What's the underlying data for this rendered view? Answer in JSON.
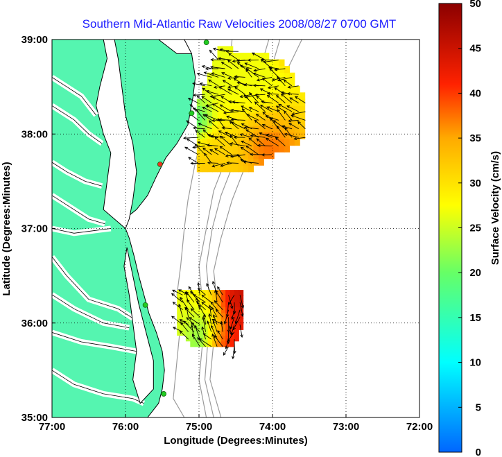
{
  "chart_data": {
    "type": "heatmap",
    "title": "Southern Mid-Atlantic Raw Velocities 2008/08/27 0700 GMT",
    "xlabel": "Longitude (Degrees:Minutes)",
    "ylabel": "Latitude (Degrees:Minutes)",
    "colorbar_label": "Surface Velocity (cm/s)",
    "xlim": [
      -77,
      -72
    ],
    "ylim": [
      35,
      39
    ],
    "x_ticks": [
      {
        "value": -77,
        "label": "77:00"
      },
      {
        "value": -76,
        "label": "76:00"
      },
      {
        "value": -75,
        "label": "75:00"
      },
      {
        "value": -74,
        "label": "74:00"
      },
      {
        "value": -73,
        "label": "73:00"
      },
      {
        "value": -72,
        "label": "72:00"
      }
    ],
    "y_ticks": [
      {
        "value": 35,
        "label": "35:00"
      },
      {
        "value": 36,
        "label": "36:00"
      },
      {
        "value": 37,
        "label": "37:00"
      },
      {
        "value": 38,
        "label": "38:00"
      },
      {
        "value": 39,
        "label": "39:00"
      }
    ],
    "colorbar": {
      "min": 0,
      "max": 50,
      "ticks": [
        {
          "value": 0,
          "label": "0"
        },
        {
          "value": 5,
          "label": "5"
        },
        {
          "value": 10,
          "label": "10"
        },
        {
          "value": 15,
          "label": "15"
        },
        {
          "value": 20,
          "label": "20"
        },
        {
          "value": 25,
          "label": "25"
        },
        {
          "value": 30,
          "label": "30"
        },
        {
          "value": 35,
          "label": "35"
        },
        {
          "value": 40,
          "label": "40"
        },
        {
          "value": 45,
          "label": "45"
        },
        {
          "value": 50,
          "label": "50"
        }
      ]
    },
    "grid": true,
    "colors": {
      "land": "#55f5b0",
      "coast": "#000000",
      "bathymetry": "#9a9a9a",
      "title": "#1a1aff",
      "station": "#22cc22",
      "station_alt": "#ee3322"
    },
    "stations": [
      {
        "lon": -74.9,
        "lat": 38.97,
        "color": "station"
      },
      {
        "lon": -75.1,
        "lat": 38.22,
        "color": "station"
      },
      {
        "lon": -75.53,
        "lat": 37.68,
        "color": "station_alt"
      },
      {
        "lon": -75.73,
        "lat": 36.19,
        "color": "station"
      },
      {
        "lon": -75.48,
        "lat": 35.25,
        "color": "station"
      }
    ],
    "north_region": {
      "lon_range": [
        -75.1,
        -73.5
      ],
      "lat_range": [
        37.6,
        38.95
      ],
      "grid_step": 0.07,
      "blobs": [
        {
          "lon": -74.7,
          "lat": 38.45,
          "value": 26,
          "r": 0.5
        },
        {
          "lon": -74.3,
          "lat": 38.6,
          "value": 28,
          "r": 0.3
        },
        {
          "lon": -74.0,
          "lat": 38.15,
          "value": 25,
          "r": 0.35
        },
        {
          "lon": -73.85,
          "lat": 38.0,
          "value": 44,
          "r": 0.22
        },
        {
          "lon": -74.15,
          "lat": 37.92,
          "value": 48,
          "r": 0.2
        },
        {
          "lon": -74.5,
          "lat": 37.9,
          "value": 32,
          "r": 0.25
        },
        {
          "lon": -74.75,
          "lat": 37.75,
          "value": 34,
          "r": 0.25
        },
        {
          "lon": -75.0,
          "lat": 38.15,
          "value": 12,
          "r": 0.12
        },
        {
          "lon": -73.75,
          "lat": 38.85,
          "value": 35,
          "r": 0.12
        },
        {
          "lon": -73.65,
          "lat": 38.3,
          "value": 30,
          "r": 0.2
        }
      ],
      "flow_dir_deg": 200,
      "flow_dir_var": 35
    },
    "south_region": {
      "lon_range": [
        -75.3,
        -74.35
      ],
      "lat_range": [
        35.75,
        36.35
      ],
      "grid_step": 0.06,
      "blobs": [
        {
          "lon": -75.1,
          "lat": 36.1,
          "value": 26,
          "r": 0.2
        },
        {
          "lon": -74.85,
          "lat": 36.2,
          "value": 30,
          "r": 0.2
        },
        {
          "lon": -74.9,
          "lat": 35.95,
          "value": 16,
          "r": 0.15
        },
        {
          "lon": -74.6,
          "lat": 36.05,
          "value": 44,
          "r": 0.18
        },
        {
          "lon": -74.55,
          "lat": 36.25,
          "value": 48,
          "r": 0.12
        },
        {
          "lon": -74.7,
          "lat": 35.85,
          "value": 42,
          "r": 0.12
        }
      ],
      "flow_dir_deg": 235,
      "flow_dir_var": 30,
      "east_flow_dir_deg": 100
    }
  }
}
